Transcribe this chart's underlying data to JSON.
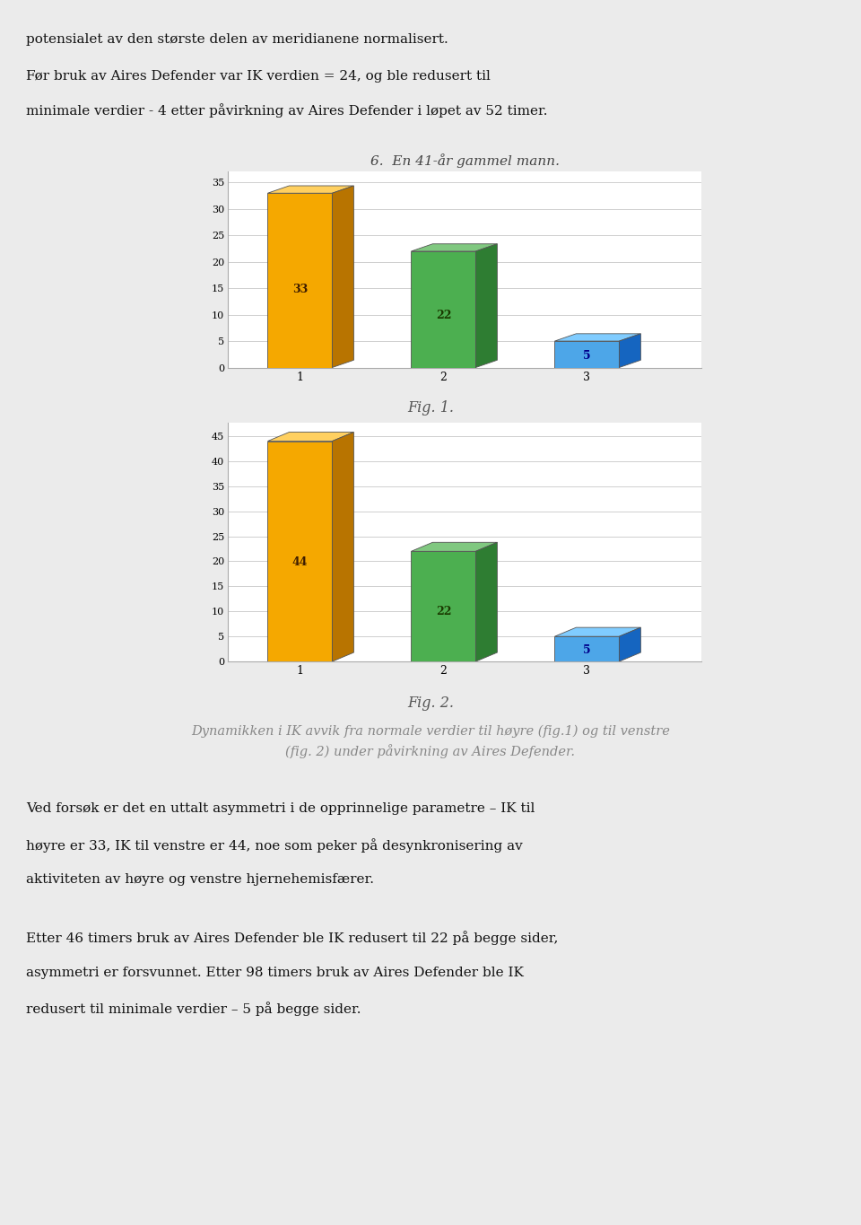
{
  "page_bg": "#ebebeb",
  "chart_bg": "#ffffff",
  "title_chart": "6.  En 41-år gammel mann.",
  "fig1_caption": "Fig. 1.",
  "fig2_caption": "Fig. 2.",
  "fig1_values": [
    33,
    22,
    5
  ],
  "fig2_values": [
    44,
    22,
    5
  ],
  "fig1_ylim": [
    0,
    35
  ],
  "fig2_ylim": [
    0,
    45
  ],
  "fig1_yticks": [
    0,
    5,
    10,
    15,
    20,
    25,
    30,
    35
  ],
  "fig2_yticks": [
    0,
    5,
    10,
    15,
    20,
    25,
    30,
    35,
    40,
    45
  ],
  "xtick_labels": [
    "1",
    "2",
    "3"
  ],
  "bar_colors": [
    "#F5A800",
    "#4CAF50",
    "#4DA6E8"
  ],
  "bar_side_colors": [
    "#B87400",
    "#2E7D32",
    "#1565C0"
  ],
  "bar_top_colors": [
    "#FFD060",
    "#80C880",
    "#80CCFF"
  ],
  "label_colors": [
    "#3D1C00",
    "#1A3A00",
    "#00008B"
  ],
  "text_line1": "potensialet av den største delen av meridianene normalisert.",
  "text_line2_1": "Før bruk av Aires Defender var IK verdien = 24, og ble redusert til",
  "text_line2_2": "minimale verdier - 4 etter påvirkning av Aires Defender i løpet av 52 timer.",
  "caption_text": "Dynamikken i IK avvik fra normale verdier til høyre (fig.1) og til venstre\n(fig. 2) under påvirkning av Aires Defender.",
  "text_para3_1": "Ved forsøk er det en uttalt asymmetri i de opprinnelige parametre – IK til",
  "text_para3_2": "høyre er 33, IK til venstre er 44, noe som peker på desynkronisering av",
  "text_para3_3": "aktiviteten av høyre og venstre hjernehemisfærer.",
  "text_para4_1": "Etter 46 timers bruk av Aires Defender ble IK redusert til 22 på begge sider,",
  "text_para4_2": "asymmetri er forsvunnet. Etter 98 timers bruk av Aires Defender ble IK",
  "text_para4_3": "redusert til minimale verdier – 5 på begge sider.",
  "grid_color": "#c8c8c8",
  "spine_color": "#aaaaaa"
}
